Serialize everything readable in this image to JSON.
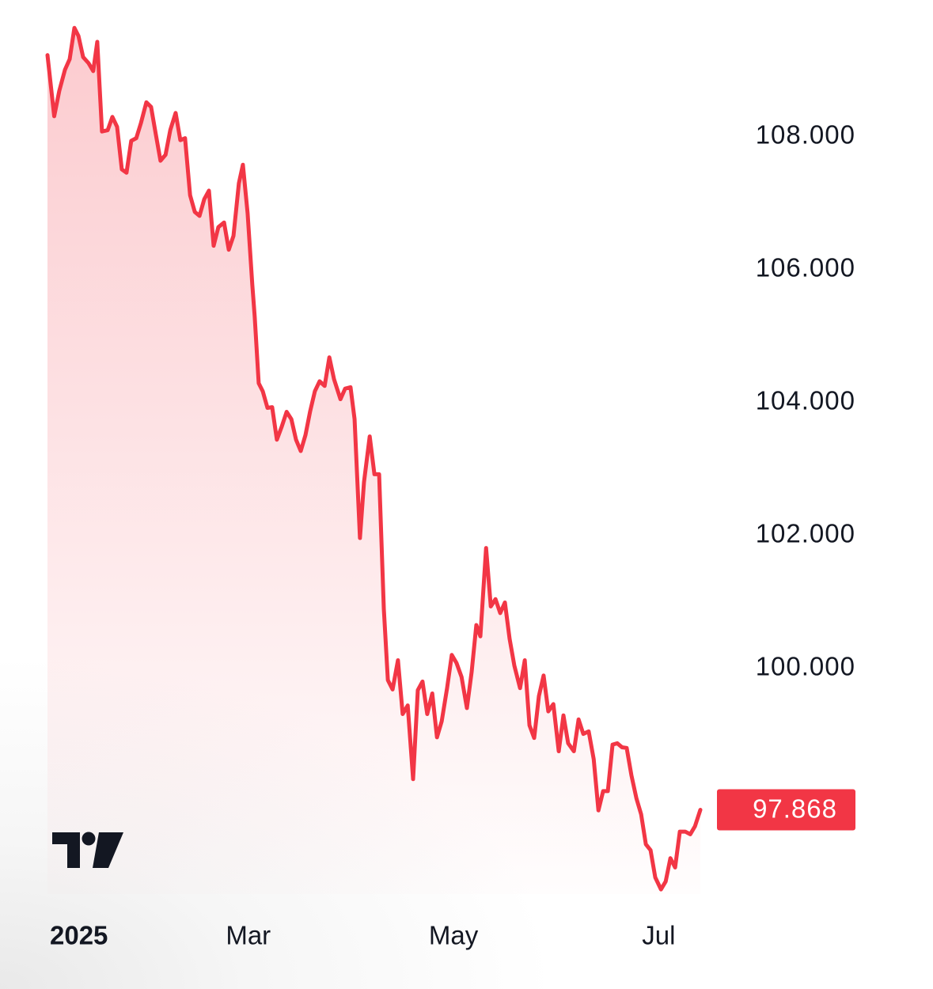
{
  "chart_data": {
    "type": "line",
    "color": "#f23645",
    "x": [
      0,
      2,
      3.5,
      5.2,
      6.6,
      8,
      9.2,
      10.6,
      12.2,
      13.6,
      14.8,
      16.2,
      17.9,
      19.3,
      20.7,
      22.1,
      23.5,
      24.9,
      26.4,
      27.8,
      29.4,
      30.8,
      32.2,
      33.6,
      35.1,
      36.5,
      38.1,
      39.5,
      40.9,
      42.4,
      43.8,
      45.2,
      46.6,
      48,
      49.4,
      50.8,
      52.5,
      53.9,
      55.3,
      56.9,
      58.1,
      59.5,
      60.9,
      61.6,
      62.8,
      64,
      65.4,
      66.8,
      68.2,
      69.6,
      71.1,
      72.5,
      73.9,
      75.3,
      76.7,
      78.1,
      79.5,
      80.9,
      82.4,
      83.8,
      85.2,
      87.1,
      88.5,
      90.1,
      91.3,
      92.9,
      94.1,
      95.8,
      97.2,
      98.6,
      100,
      101.2,
      102.6,
      104.2,
      105.6,
      107.1,
      108.7,
      110.1,
      111.5,
      112.9,
      114.4,
      115.8,
      117.2,
      118.8,
      120.2,
      121.6,
      123.1,
      124.7,
      126.1,
      127.5,
      128.7,
      130.4,
      131.8,
      133.2,
      134.6,
      136,
      137.4,
      138.8,
      140.5,
      141.9,
      143.3,
      144.7,
      146.1,
      147.5,
      148.9,
      150.4,
      152,
      153.4,
      154.8,
      156.5,
      157.9,
      159.3,
      160.9,
      162.4,
      163.8,
      165.2,
      166.6,
      168,
      169.4,
      170.8,
      172.2,
      173.6,
      175.1,
      176.5,
      177.9,
      179.3,
      180.7,
      182.4,
      183.8,
      185.2,
      186.6,
      188,
      189.6,
      191.1,
      192.5,
      194.1
    ],
    "values": [
      109.23,
      108.31,
      108.69,
      109.01,
      109.17,
      109.64,
      109.52,
      109.2,
      109.11,
      108.99,
      109.43,
      108.08,
      108.1,
      108.3,
      108.15,
      107.51,
      107.46,
      107.94,
      107.98,
      108.21,
      108.52,
      108.45,
      108.04,
      107.64,
      107.73,
      108.1,
      108.36,
      107.95,
      107.98,
      107.12,
      106.87,
      106.81,
      107.06,
      107.19,
      106.36,
      106.64,
      106.71,
      106.3,
      106.51,
      107.3,
      107.58,
      106.85,
      105.77,
      105.3,
      104.29,
      104.17,
      103.92,
      103.93,
      103.44,
      103.63,
      103.86,
      103.75,
      103.44,
      103.27,
      103.51,
      103.87,
      104.17,
      104.32,
      104.25,
      104.68,
      104.35,
      104.05,
      104.21,
      104.23,
      103.75,
      101.96,
      102.8,
      103.49,
      102.92,
      102.92,
      100.89,
      99.82,
      99.68,
      100.12,
      99.31,
      99.44,
      98.33,
      99.67,
      99.8,
      99.31,
      99.62,
      98.96,
      99.2,
      99.7,
      100.2,
      100.08,
      99.87,
      99.4,
      99.94,
      100.65,
      100.48,
      101.81,
      100.93,
      101.04,
      100.83,
      100.99,
      100.44,
      100.04,
      99.7,
      100.12,
      99.14,
      98.95,
      99.58,
      99.89,
      99.35,
      99.46,
      98.75,
      99.29,
      98.87,
      98.75,
      99.23,
      99.01,
      99.05,
      98.63,
      97.86,
      98.15,
      98.15,
      98.85,
      98.87,
      98.81,
      98.8,
      98.39,
      98.04,
      97.8,
      97.35,
      97.26,
      96.85,
      96.67,
      96.79,
      97.14,
      97,
      97.54,
      97.54,
      97.5,
      97.62,
      97.868
    ],
    "xlim": [
      0,
      194.1
    ],
    "xticks": [
      {
        "value": 0,
        "label": "2025"
      },
      {
        "value": 59,
        "label": "Mar"
      },
      {
        "value": 120,
        "label": "May"
      },
      {
        "value": 181,
        "label": "Jul"
      }
    ],
    "ylim": [
      96.6,
      110.06
    ],
    "yticks": [
      {
        "value": 100,
        "label": "100.000"
      },
      {
        "value": 102,
        "label": "102.000"
      },
      {
        "value": 104,
        "label": "104.000"
      },
      {
        "value": 106,
        "label": "106.000"
      },
      {
        "value": 108,
        "label": "108.000"
      }
    ],
    "grid": false
  }
}
